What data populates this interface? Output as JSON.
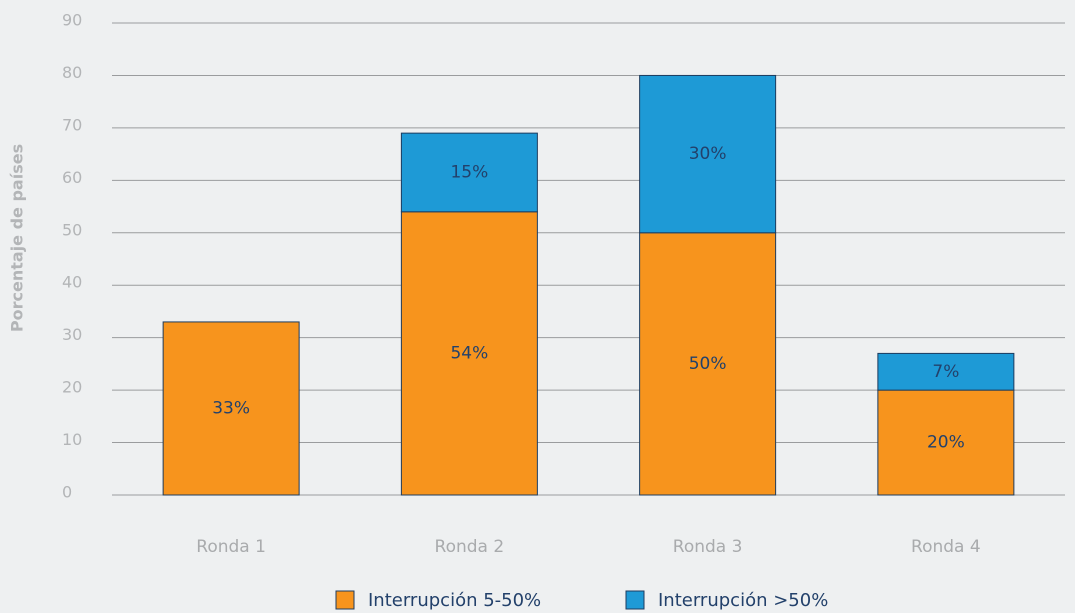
{
  "chart_data": {
    "type": "bar",
    "stacked": true,
    "y_label": "Porcentaje de países",
    "categories": [
      "Ronda 1",
      "Ronda 2",
      "Ronda 3",
      "Ronda 4"
    ],
    "series": [
      {
        "name": "Interrupción 5-50%",
        "color": "#f7941d",
        "values": [
          33,
          54,
          50,
          20
        ],
        "value_labels": [
          "33%",
          "54%",
          "50%",
          "20%"
        ]
      },
      {
        "name": "Interrupción >50%",
        "color": "#1e9ad6",
        "values": [
          null,
          15,
          30,
          7
        ],
        "value_labels": [
          null,
          "15%",
          "30%",
          "7%"
        ]
      }
    ],
    "ylim": [
      0,
      90
    ],
    "yticks": [
      0,
      10,
      20,
      30,
      40,
      50,
      60,
      70,
      80,
      90
    ],
    "grid": true,
    "legend": "bottom"
  }
}
